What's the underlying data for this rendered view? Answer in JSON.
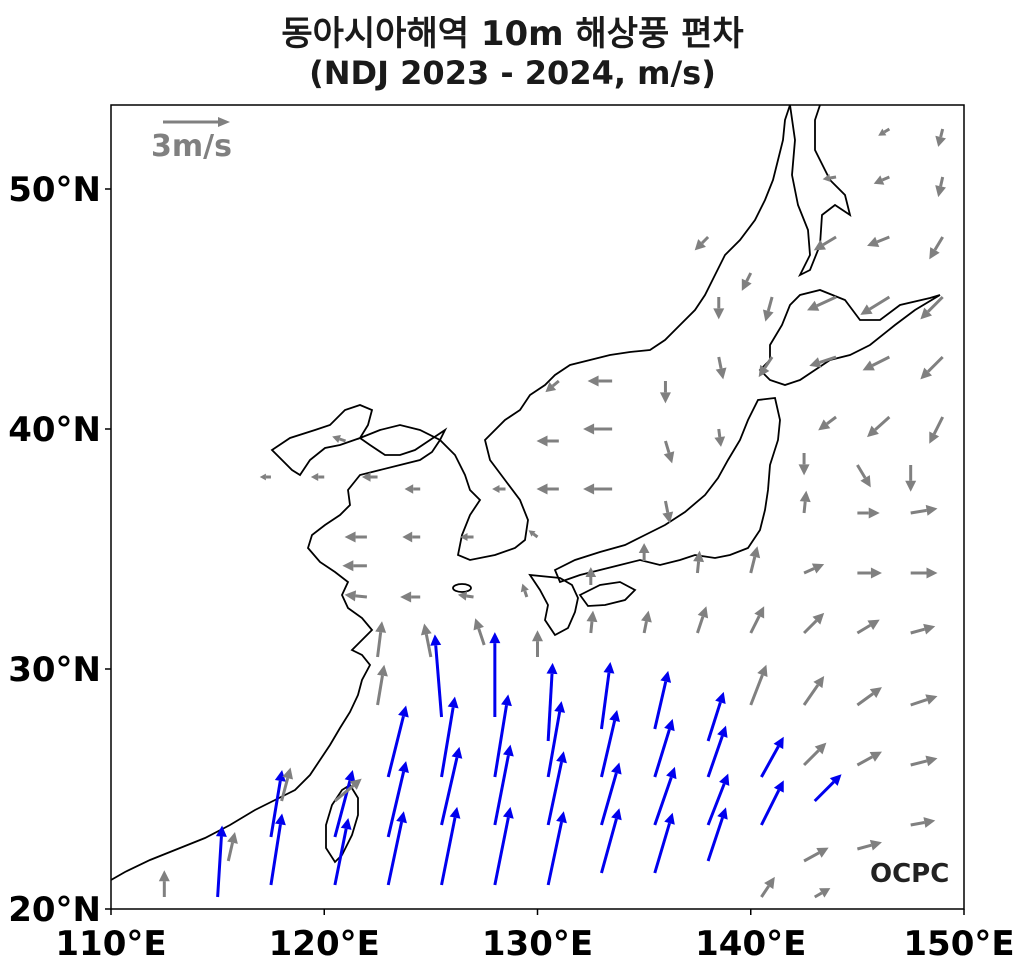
{
  "title": "동아시아해역 10m 해상풍 편차",
  "subtitle": "(NDJ 2023 - 2024, m/s)",
  "scale_arrow": {
    "label": "3m/s",
    "value": 3
  },
  "logo_text": "OCPC",
  "colors": {
    "normal_vector": "#808080",
    "strong_vector": "#0000ee",
    "coastline": "#000000"
  },
  "axes": {
    "x_ticks": [
      "110°E",
      "120°E",
      "130°E",
      "140°E",
      "150°E"
    ],
    "y_ticks": [
      "20°N",
      "30°N",
      "40°N",
      "50°N"
    ],
    "x_tick_values": [
      110,
      120,
      130,
      140,
      150
    ],
    "y_tick_values": [
      20,
      30,
      40,
      50
    ],
    "xlim": [
      110,
      150
    ],
    "ylim": [
      20,
      53.5
    ]
  },
  "chart_data": {
    "type": "vector-field",
    "title": "동아시아해역 10m 해상풍 편차",
    "subtitle": "(NDJ 2023 - 2024, m/s)",
    "units": "m/s",
    "xlim": [
      110,
      150
    ],
    "ylim": [
      20,
      53.5
    ],
    "vectors": [
      {
        "lon": 112.5,
        "lat": 20.5,
        "u": 0.0,
        "v": 1.2,
        "strong": false
      },
      {
        "lon": 115.0,
        "lat": 20.5,
        "u": 0.2,
        "v": 3.2,
        "strong": true
      },
      {
        "lon": 117.5,
        "lat": 21.0,
        "u": 0.5,
        "v": 3.2,
        "strong": true
      },
      {
        "lon": 120.5,
        "lat": 21.0,
        "u": 0.6,
        "v": 3.0,
        "strong": true
      },
      {
        "lon": 123.0,
        "lat": 21.0,
        "u": 0.7,
        "v": 3.3,
        "strong": true
      },
      {
        "lon": 125.5,
        "lat": 21.0,
        "u": 0.7,
        "v": 3.5,
        "strong": true
      },
      {
        "lon": 128.0,
        "lat": 21.0,
        "u": 0.7,
        "v": 3.5,
        "strong": true
      },
      {
        "lon": 130.5,
        "lat": 21.0,
        "u": 0.7,
        "v": 3.3,
        "strong": true
      },
      {
        "lon": 133.0,
        "lat": 21.5,
        "u": 0.8,
        "v": 2.9,
        "strong": true
      },
      {
        "lon": 135.5,
        "lat": 21.5,
        "u": 0.8,
        "v": 2.7,
        "strong": true
      },
      {
        "lon": 138.0,
        "lat": 22.0,
        "u": 0.8,
        "v": 2.4,
        "strong": true
      },
      {
        "lon": 115.5,
        "lat": 22.0,
        "u": 0.3,
        "v": 1.3,
        "strong": false
      },
      {
        "lon": 117.5,
        "lat": 23.0,
        "u": 0.5,
        "v": 3.0,
        "strong": true
      },
      {
        "lon": 120.5,
        "lat": 23.0,
        "u": 0.8,
        "v": 3.0,
        "strong": true
      },
      {
        "lon": 123.0,
        "lat": 23.0,
        "u": 0.8,
        "v": 3.4,
        "strong": true
      },
      {
        "lon": 125.5,
        "lat": 23.5,
        "u": 0.8,
        "v": 3.5,
        "strong": true
      },
      {
        "lon": 128.0,
        "lat": 23.5,
        "u": 0.7,
        "v": 3.6,
        "strong": true
      },
      {
        "lon": 130.5,
        "lat": 23.5,
        "u": 0.7,
        "v": 3.3,
        "strong": true
      },
      {
        "lon": 133.0,
        "lat": 23.5,
        "u": 0.8,
        "v": 2.8,
        "strong": true
      },
      {
        "lon": 135.5,
        "lat": 23.5,
        "u": 0.9,
        "v": 2.6,
        "strong": true
      },
      {
        "lon": 138.0,
        "lat": 23.5,
        "u": 0.9,
        "v": 2.3,
        "strong": true
      },
      {
        "lon": 140.5,
        "lat": 23.5,
        "u": 1.0,
        "v": 2.0,
        "strong": true
      },
      {
        "lon": 143.0,
        "lat": 24.5,
        "u": 1.2,
        "v": 1.2,
        "strong": true
      },
      {
        "lon": 123.0,
        "lat": 25.5,
        "u": 0.8,
        "v": 3.2,
        "strong": true
      },
      {
        "lon": 125.5,
        "lat": 25.5,
        "u": 0.6,
        "v": 3.6,
        "strong": true
      },
      {
        "lon": 128.0,
        "lat": 25.5,
        "u": 0.6,
        "v": 3.7,
        "strong": true
      },
      {
        "lon": 130.5,
        "lat": 25.5,
        "u": 0.6,
        "v": 3.4,
        "strong": true
      },
      {
        "lon": 133.0,
        "lat": 25.5,
        "u": 0.7,
        "v": 3.0,
        "strong": true
      },
      {
        "lon": 135.5,
        "lat": 25.5,
        "u": 0.8,
        "v": 2.6,
        "strong": true
      },
      {
        "lon": 138.0,
        "lat": 25.5,
        "u": 0.8,
        "v": 2.3,
        "strong": true
      },
      {
        "lon": 140.5,
        "lat": 25.5,
        "u": 1.0,
        "v": 1.8,
        "strong": true
      },
      {
        "lon": 125.5,
        "lat": 28.0,
        "u": -0.3,
        "v": 3.7,
        "strong": true
      },
      {
        "lon": 128.0,
        "lat": 28.0,
        "u": 0.0,
        "v": 3.8,
        "strong": true
      },
      {
        "lon": 130.5,
        "lat": 27.0,
        "u": 0.2,
        "v": 3.5,
        "strong": true
      },
      {
        "lon": 133.0,
        "lat": 27.5,
        "u": 0.4,
        "v": 3.0,
        "strong": true
      },
      {
        "lon": 135.5,
        "lat": 27.5,
        "u": 0.6,
        "v": 2.6,
        "strong": true
      },
      {
        "lon": 138.0,
        "lat": 27.0,
        "u": 0.7,
        "v": 2.2,
        "strong": true
      },
      {
        "lon": 120.5,
        "lat": 24.5,
        "u": 1.2,
        "v": 1.0,
        "strong": false
      },
      {
        "lon": 118.0,
        "lat": 24.5,
        "u": 0.4,
        "v": 1.5,
        "strong": false
      },
      {
        "lon": 122.5,
        "lat": 28.5,
        "u": 0.3,
        "v": 1.8,
        "strong": false
      },
      {
        "lon": 122.5,
        "lat": 30.5,
        "u": 0.2,
        "v": 1.6,
        "strong": false
      },
      {
        "lon": 125.0,
        "lat": 30.5,
        "u": -0.3,
        "v": 1.5,
        "strong": false
      },
      {
        "lon": 127.5,
        "lat": 31.0,
        "u": -0.4,
        "v": 1.2,
        "strong": false
      },
      {
        "lon": 130.0,
        "lat": 30.5,
        "u": 0.0,
        "v": 1.2,
        "strong": false
      },
      {
        "lon": 132.5,
        "lat": 31.5,
        "u": 0.1,
        "v": 1.0,
        "strong": false
      },
      {
        "lon": 135.0,
        "lat": 31.5,
        "u": 0.2,
        "v": 1.0,
        "strong": false
      },
      {
        "lon": 137.5,
        "lat": 31.5,
        "u": 0.4,
        "v": 1.2,
        "strong": false
      },
      {
        "lon": 140.0,
        "lat": 31.5,
        "u": 0.6,
        "v": 1.2,
        "strong": false
      },
      {
        "lon": 142.5,
        "lat": 31.5,
        "u": 0.9,
        "v": 0.9,
        "strong": false
      },
      {
        "lon": 145.0,
        "lat": 31.5,
        "u": 1.0,
        "v": 0.6,
        "strong": false
      },
      {
        "lon": 147.5,
        "lat": 31.5,
        "u": 1.1,
        "v": 0.3,
        "strong": false
      },
      {
        "lon": 140.0,
        "lat": 28.5,
        "u": 0.7,
        "v": 1.8,
        "strong": false
      },
      {
        "lon": 142.5,
        "lat": 28.5,
        "u": 0.9,
        "v": 1.3,
        "strong": false
      },
      {
        "lon": 145.0,
        "lat": 28.5,
        "u": 1.1,
        "v": 0.8,
        "strong": false
      },
      {
        "lon": 147.5,
        "lat": 28.5,
        "u": 1.2,
        "v": 0.4,
        "strong": false
      },
      {
        "lon": 142.5,
        "lat": 26.0,
        "u": 1.0,
        "v": 1.0,
        "strong": false
      },
      {
        "lon": 145.0,
        "lat": 26.0,
        "u": 1.1,
        "v": 0.6,
        "strong": false
      },
      {
        "lon": 147.5,
        "lat": 26.0,
        "u": 1.2,
        "v": 0.3,
        "strong": false
      },
      {
        "lon": 142.5,
        "lat": 22.0,
        "u": 1.1,
        "v": 0.6,
        "strong": false
      },
      {
        "lon": 145.0,
        "lat": 22.5,
        "u": 1.1,
        "v": 0.3,
        "strong": false
      },
      {
        "lon": 147.5,
        "lat": 23.5,
        "u": 1.1,
        "v": 0.2,
        "strong": false
      },
      {
        "lon": 140.5,
        "lat": 20.5,
        "u": 0.6,
        "v": 0.9,
        "strong": false
      },
      {
        "lon": 143.0,
        "lat": 20.5,
        "u": 0.7,
        "v": 0.4,
        "strong": false
      },
      {
        "lon": 145.0,
        "lat": 34.0,
        "u": 1.1,
        "v": 0.0,
        "strong": false
      },
      {
        "lon": 147.5,
        "lat": 34.0,
        "u": 1.2,
        "v": 0.0,
        "strong": false
      },
      {
        "lon": 142.5,
        "lat": 34.0,
        "u": 0.9,
        "v": 0.4,
        "strong": false
      },
      {
        "lon": 140.0,
        "lat": 34.0,
        "u": 0.3,
        "v": 1.2,
        "strong": false
      },
      {
        "lon": 137.5,
        "lat": 34.0,
        "u": 0.1,
        "v": 1.0,
        "strong": false
      },
      {
        "lon": 132.5,
        "lat": 33.5,
        "u": 0.0,
        "v": 0.8,
        "strong": false
      },
      {
        "lon": 145.0,
        "lat": 36.5,
        "u": 1.0,
        "v": 0.0,
        "strong": false
      },
      {
        "lon": 147.5,
        "lat": 36.5,
        "u": 1.2,
        "v": 0.2,
        "strong": false
      },
      {
        "lon": 142.5,
        "lat": 36.5,
        "u": 0.1,
        "v": 1.0,
        "strong": false
      },
      {
        "lon": 145.0,
        "lat": 38.5,
        "u": 0.6,
        "v": -1.0,
        "strong": false
      },
      {
        "lon": 147.5,
        "lat": 38.5,
        "u": 0.0,
        "v": -1.2,
        "strong": false
      },
      {
        "lon": 142.5,
        "lat": 39.0,
        "u": 0.0,
        "v": -1.0,
        "strong": false
      },
      {
        "lon": 144.0,
        "lat": 40.5,
        "u": -0.8,
        "v": -0.6,
        "strong": false
      },
      {
        "lon": 146.5,
        "lat": 40.5,
        "u": -1.0,
        "v": -0.9,
        "strong": false
      },
      {
        "lon": 149.0,
        "lat": 40.5,
        "u": -0.6,
        "v": -1.2,
        "strong": false
      },
      {
        "lon": 144.0,
        "lat": 43.0,
        "u": -1.2,
        "v": -0.4,
        "strong": false
      },
      {
        "lon": 146.5,
        "lat": 43.0,
        "u": -1.2,
        "v": -0.6,
        "strong": false
      },
      {
        "lon": 149.0,
        "lat": 43.0,
        "u": -1.0,
        "v": -1.0,
        "strong": false
      },
      {
        "lon": 144.0,
        "lat": 45.5,
        "u": -1.3,
        "v": -0.6,
        "strong": false
      },
      {
        "lon": 146.5,
        "lat": 45.5,
        "u": -1.3,
        "v": -0.8,
        "strong": false
      },
      {
        "lon": 149.0,
        "lat": 45.5,
        "u": -1.0,
        "v": -1.0,
        "strong": false
      },
      {
        "lon": 144.0,
        "lat": 48.0,
        "u": -1.0,
        "v": -0.6,
        "strong": false
      },
      {
        "lon": 146.5,
        "lat": 48.0,
        "u": -1.0,
        "v": -0.4,
        "strong": false
      },
      {
        "lon": 149.0,
        "lat": 48.0,
        "u": -0.6,
        "v": -1.0,
        "strong": false
      },
      {
        "lon": 144.0,
        "lat": 50.5,
        "u": -0.6,
        "v": -0.1,
        "strong": false
      },
      {
        "lon": 146.5,
        "lat": 50.5,
        "u": -0.7,
        "v": -0.3,
        "strong": false
      },
      {
        "lon": 149.0,
        "lat": 50.5,
        "u": -0.2,
        "v": -0.9,
        "strong": false
      },
      {
        "lon": 146.5,
        "lat": 52.5,
        "u": -0.5,
        "v": -0.3,
        "strong": false
      },
      {
        "lon": 149.0,
        "lat": 52.5,
        "u": -0.2,
        "v": -0.8,
        "strong": false
      },
      {
        "lon": 141.0,
        "lat": 43.0,
        "u": -0.6,
        "v": -0.9,
        "strong": false
      },
      {
        "lon": 141.0,
        "lat": 45.5,
        "u": -0.3,
        "v": -1.1,
        "strong": false
      },
      {
        "lon": 138.5,
        "lat": 45.5,
        "u": 0.0,
        "v": -1.0,
        "strong": false
      },
      {
        "lon": 138.5,
        "lat": 43.0,
        "u": 0.2,
        "v": -1.0,
        "strong": false
      },
      {
        "lon": 136.0,
        "lat": 42.0,
        "u": 0.0,
        "v": -1.0,
        "strong": false
      },
      {
        "lon": 136.0,
        "lat": 39.5,
        "u": 0.3,
        "v": -1.0,
        "strong": false
      },
      {
        "lon": 138.5,
        "lat": 40.0,
        "u": 0.1,
        "v": -0.8,
        "strong": false
      },
      {
        "lon": 136.0,
        "lat": 37.0,
        "u": 0.2,
        "v": -1.0,
        "strong": false
      },
      {
        "lon": 133.5,
        "lat": 42.0,
        "u": -1.1,
        "v": 0.0,
        "strong": false
      },
      {
        "lon": 133.5,
        "lat": 40.0,
        "u": -1.3,
        "v": 0.0,
        "strong": false
      },
      {
        "lon": 133.5,
        "lat": 37.5,
        "u": -1.3,
        "v": 0.0,
        "strong": false
      },
      {
        "lon": 131.0,
        "lat": 42.0,
        "u": -0.6,
        "v": -0.5,
        "strong": false
      },
      {
        "lon": 131.0,
        "lat": 39.5,
        "u": -1.0,
        "v": 0.0,
        "strong": false
      },
      {
        "lon": 131.0,
        "lat": 37.5,
        "u": -1.0,
        "v": 0.0,
        "strong": false
      },
      {
        "lon": 128.5,
        "lat": 37.5,
        "u": -0.6,
        "v": 0.0,
        "strong": false
      },
      {
        "lon": 138.0,
        "lat": 48.0,
        "u": -0.6,
        "v": -0.6,
        "strong": false
      },
      {
        "lon": 140.0,
        "lat": 46.5,
        "u": -0.4,
        "v": -0.8,
        "strong": false
      },
      {
        "lon": 121.0,
        "lat": 39.5,
        "u": -0.6,
        "v": 0.2,
        "strong": false
      },
      {
        "lon": 122.5,
        "lat": 38.0,
        "u": -0.7,
        "v": 0.0,
        "strong": false
      },
      {
        "lon": 124.5,
        "lat": 37.5,
        "u": -0.7,
        "v": 0.0,
        "strong": false
      },
      {
        "lon": 117.5,
        "lat": 38.0,
        "u": -0.5,
        "v": 0.0,
        "strong": false
      },
      {
        "lon": 120.0,
        "lat": 38.0,
        "u": -0.6,
        "v": 0.0,
        "strong": false
      },
      {
        "lon": 122.0,
        "lat": 35.5,
        "u": -1.0,
        "v": 0.0,
        "strong": false
      },
      {
        "lon": 124.5,
        "lat": 35.5,
        "u": -0.8,
        "v": 0.0,
        "strong": false
      },
      {
        "lon": 127.0,
        "lat": 35.5,
        "u": -0.6,
        "v": 0.0,
        "strong": false
      },
      {
        "lon": 122.0,
        "lat": 33.0,
        "u": -1.0,
        "v": 0.1,
        "strong": false
      },
      {
        "lon": 124.5,
        "lat": 33.0,
        "u": -0.9,
        "v": 0.0,
        "strong": false
      },
      {
        "lon": 127.0,
        "lat": 33.0,
        "u": -0.7,
        "v": 0.1,
        "strong": false
      },
      {
        "lon": 122.0,
        "lat": 34.3,
        "u": -1.1,
        "v": 0.0,
        "strong": false
      },
      {
        "lon": 129.5,
        "lat": 33.0,
        "u": -0.2,
        "v": 0.6,
        "strong": false
      },
      {
        "lon": 130.0,
        "lat": 35.5,
        "u": -0.4,
        "v": 0.3,
        "strong": false
      },
      {
        "lon": 135.0,
        "lat": 34.5,
        "u": 0.0,
        "v": 0.8,
        "strong": false
      }
    ]
  }
}
